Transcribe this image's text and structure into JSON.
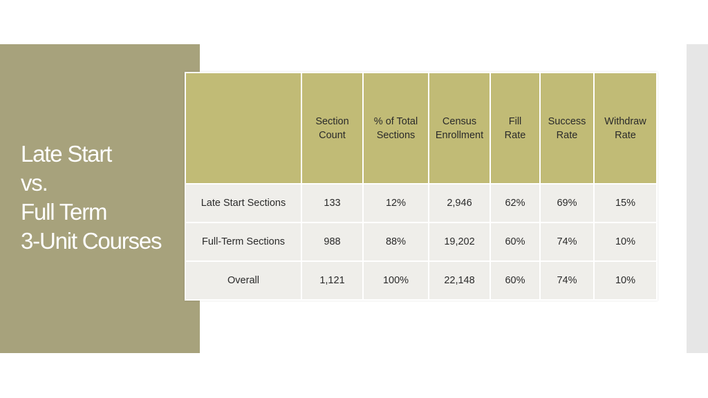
{
  "title": {
    "lines": [
      "Late Start",
      "vs.",
      "Full Term",
      "3-Unit Courses"
    ]
  },
  "table": {
    "columns": [
      {
        "line1": "Section",
        "line2": "Count"
      },
      {
        "line1": "% of Total",
        "line2": "Sections"
      },
      {
        "line1": "Census",
        "line2": "Enrollment"
      },
      {
        "line1": "Fill",
        "line2": "Rate"
      },
      {
        "line1": "Success",
        "line2": "Rate"
      },
      {
        "line1": "Withdraw",
        "line2": "Rate"
      }
    ],
    "rows": [
      {
        "label": "Late Start Sections",
        "section_count": "133",
        "pct_total_sections": "12%",
        "census_enrollment": "2,946",
        "fill_rate": "62%",
        "success_rate": "69%",
        "withdraw_rate": "15%"
      },
      {
        "label": "Full-Term Sections",
        "section_count": "988",
        "pct_total_sections": "88%",
        "census_enrollment": "19,202",
        "fill_rate": "60%",
        "success_rate": "74%",
        "withdraw_rate": "10%"
      },
      {
        "label": "Overall",
        "section_count": "1,121",
        "pct_total_sections": "100%",
        "census_enrollment": "22,148",
        "fill_rate": "60%",
        "success_rate": "74%",
        "withdraw_rate": "10%"
      }
    ]
  },
  "colors": {
    "side_panel": "#a7a27c",
    "header_fill": "#c1bb76",
    "body_fill": "#efeeea",
    "right_strip": "#e6e6e6"
  }
}
